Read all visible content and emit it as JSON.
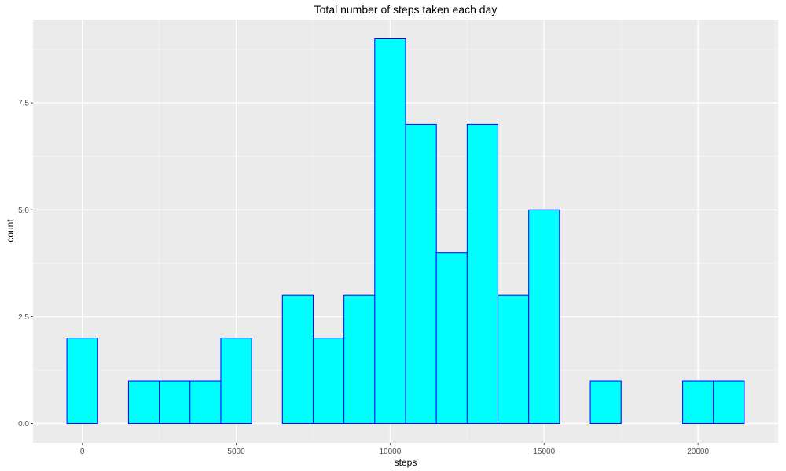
{
  "chart_data": {
    "type": "bar",
    "subtype": "histogram",
    "title": "Total number of steps taken each day",
    "xlabel": "steps",
    "ylabel": "count",
    "binwidth": 1000,
    "bin_centers": [
      0,
      1000,
      2000,
      3000,
      4000,
      5000,
      6000,
      7000,
      8000,
      9000,
      10000,
      11000,
      12000,
      13000,
      14000,
      15000,
      16000,
      17000,
      18000,
      19000,
      20000,
      21000
    ],
    "values": [
      2,
      0,
      1,
      1,
      1,
      2,
      0,
      3,
      2,
      3,
      9,
      7,
      4,
      7,
      3,
      5,
      0,
      1,
      0,
      0,
      1,
      1
    ],
    "xlim": [
      -1600,
      22600
    ],
    "ylim": [
      -0.45,
      9.45
    ],
    "x_ticks": [
      0,
      5000,
      10000,
      15000,
      20000
    ],
    "y_ticks": [
      0.0,
      2.5,
      5.0,
      7.5
    ],
    "x_tick_labels": [
      "0",
      "5000",
      "10000",
      "15000",
      "20000"
    ],
    "y_tick_labels": [
      "0.0",
      "2.5",
      "5.0",
      "7.5"
    ],
    "grid": true,
    "legend": "none",
    "colors": {
      "fill": "#00ffff",
      "stroke": "#0000ff",
      "panel": "#ebebeb",
      "grid_major": "#ffffff",
      "grid_minor": "#f5f5f5"
    }
  }
}
